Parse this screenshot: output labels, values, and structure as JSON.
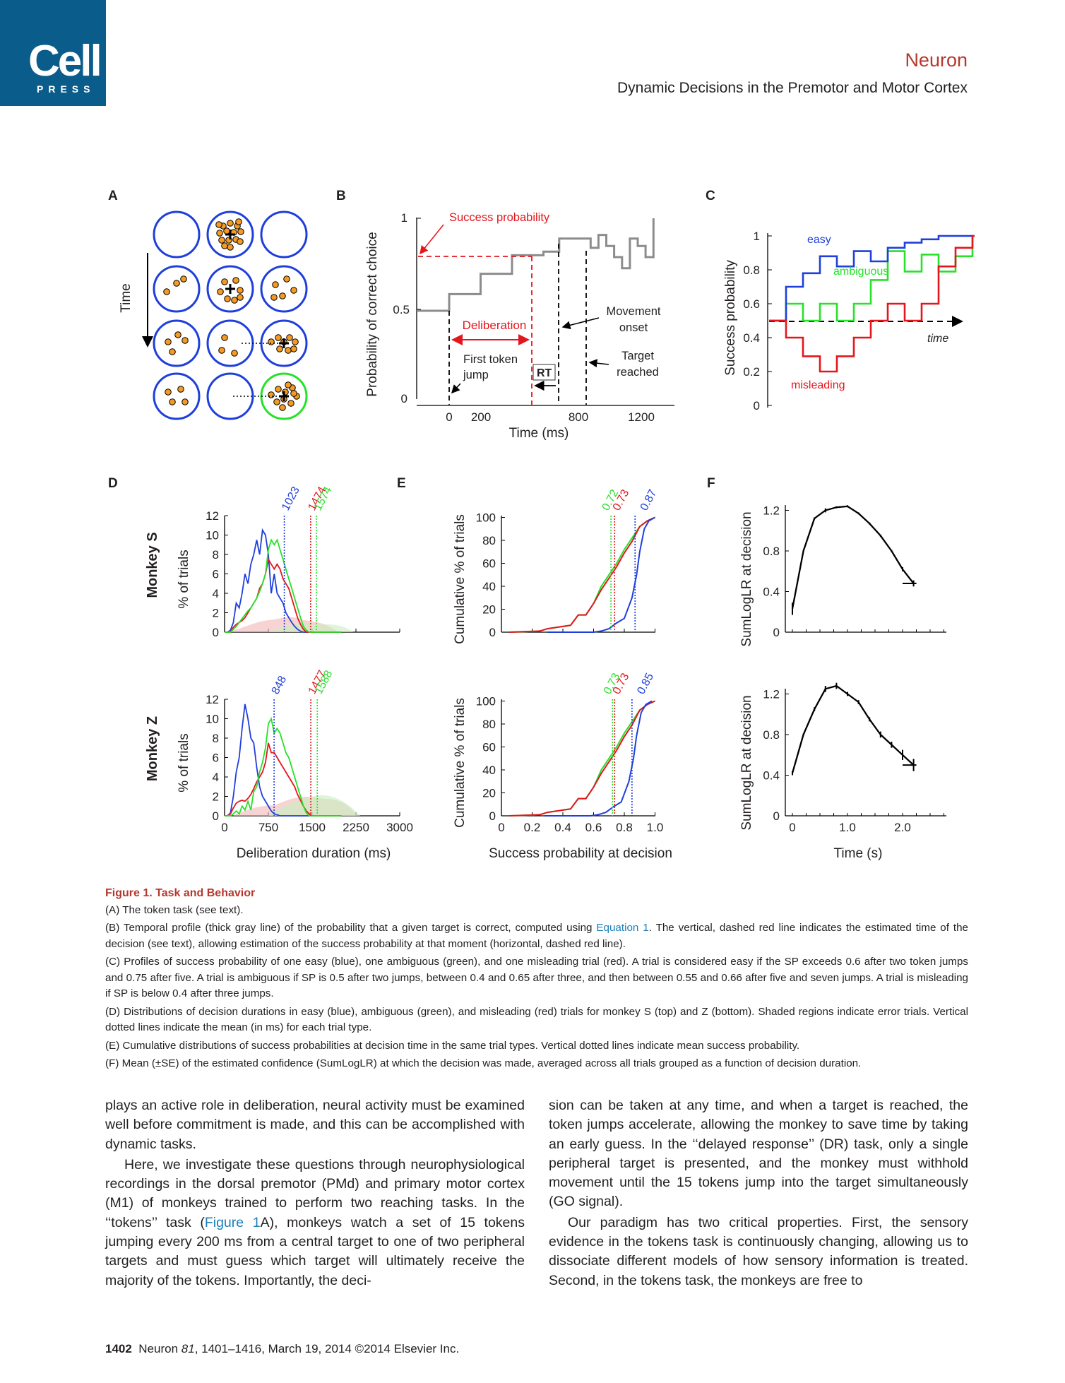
{
  "header": {
    "logo_cell": "Cell",
    "logo_press": "PRESS",
    "journal": "Neuron",
    "running_head": "Dynamic Decisions in the Premotor and Motor Cortex"
  },
  "figure": {
    "panel_labels": [
      "A",
      "B",
      "C",
      "D",
      "E",
      "F"
    ],
    "panel_a": {
      "time_label": "Time"
    },
    "panel_b": {
      "ylabel": "Probability of correct choice",
      "xlabel": "Time (ms)",
      "yticks": [
        "0",
        "0.5",
        "1"
      ],
      "xticks": [
        "0",
        "200",
        "800",
        "1200"
      ],
      "annot_success": "Success probability",
      "annot_deliberation": "Deliberation",
      "annot_first_token": [
        "First token",
        "jump"
      ],
      "annot_rt": "RT",
      "annot_movement": [
        "Movement",
        "onset"
      ],
      "annot_target": [
        "Target",
        "reached"
      ]
    },
    "panel_c": {
      "ylabel": "Success probability",
      "yticks": [
        "0",
        "0.2",
        "0.4",
        "0.6",
        "0.8",
        "1"
      ],
      "label_easy": "easy",
      "label_ambiguous": "ambiguous",
      "label_misleading": "misleading",
      "label_time": "time"
    },
    "panel_d": {
      "ylabel": "% of trials",
      "yticks": [
        "0",
        "2",
        "4",
        "6",
        "8",
        "10",
        "12"
      ],
      "xticks": [
        "0",
        "750",
        "1500",
        "2250",
        "3000"
      ],
      "xlabel": "Deliberation duration (ms)",
      "monkey_s": "Monkey S",
      "monkey_z": "Monkey Z",
      "means_s": [
        "1023",
        "1474",
        "1574"
      ],
      "means_z": [
        "848",
        "1477",
        "1588"
      ]
    },
    "panel_e": {
      "ylabel": "Cumulative % of trials",
      "yticks": [
        "0",
        "20",
        "40",
        "60",
        "80",
        "100"
      ],
      "xticks": [
        "0",
        "0.2",
        "0.4",
        "0.6",
        "0.8",
        "1.0"
      ],
      "xlabel": "Success probability at decision",
      "means_s": [
        "0.72",
        "0.73",
        "0.87"
      ],
      "means_z": [
        "0.73",
        "0.73",
        "0.85"
      ]
    },
    "panel_f": {
      "ylabel": "SumLogLR at decision",
      "yticks": [
        "0",
        "0.4",
        "0.8",
        "1.2"
      ],
      "xticks": [
        "0",
        "1.0",
        "2.0"
      ],
      "xlabel": "Time (s)"
    },
    "colors": {
      "easy": "#1f3fdc",
      "ambiguous": "#28e12a",
      "misleading": "#e4161d",
      "gray": "#8c8c8c",
      "token": "#f59a23"
    }
  },
  "chart_data": [
    {
      "panel": "B",
      "type": "line",
      "xlabel": "Time (ms)",
      "ylabel": "Probability of correct choice",
      "ylim": [
        0,
        1
      ],
      "series": [
        {
          "name": "Success probability",
          "x": [
            -200,
            0,
            200,
            400,
            600,
            700,
            900,
            950,
            1000,
            1050,
            1100,
            1150,
            1200,
            1250,
            1300
          ],
          "y": [
            0.5,
            0.59,
            0.7,
            0.8,
            0.82,
            0.89,
            0.84,
            0.91,
            0.85,
            0.79,
            0.73,
            0.89,
            0.85,
            0.79,
            1.0
          ]
        }
      ]
    },
    {
      "panel": "C",
      "type": "line",
      "ylabel": "Success probability",
      "ylim": [
        0,
        1
      ],
      "series": [
        {
          "name": "easy",
          "y": [
            0.5,
            0.7,
            0.78,
            0.88,
            0.82,
            0.91,
            0.85,
            0.93,
            0.96,
            0.98,
            1.0,
            1.0
          ]
        },
        {
          "name": "ambiguous",
          "y": [
            0.5,
            0.6,
            0.5,
            0.6,
            0.5,
            0.6,
            0.74,
            0.91,
            0.79,
            0.89,
            0.79,
            0.88,
            1.0
          ]
        },
        {
          "name": "misleading",
          "y": [
            0.5,
            0.4,
            0.29,
            0.2,
            0.29,
            0.4,
            0.5,
            0.6,
            0.5,
            0.6,
            0.82,
            0.93,
            1.0
          ]
        }
      ]
    },
    {
      "panel": "D",
      "monkey": "S",
      "type": "line",
      "xlabel": "Deliberation duration (ms)",
      "ylabel": "% of trials",
      "ylim": [
        0,
        12
      ],
      "xlim": [
        0,
        3000
      ],
      "means": {
        "easy": 1023,
        "misleading": 1474,
        "ambiguous": 1574
      }
    },
    {
      "panel": "D",
      "monkey": "Z",
      "type": "line",
      "xlabel": "Deliberation duration (ms)",
      "ylabel": "% of trials",
      "ylim": [
        0,
        12
      ],
      "xlim": [
        0,
        3000
      ],
      "means": {
        "easy": 848,
        "misleading": 1477,
        "ambiguous": 1588
      }
    },
    {
      "panel": "E",
      "monkey": "S",
      "type": "line",
      "xlabel": "Success probability at decision",
      "ylabel": "Cumulative % of trials",
      "ylim": [
        0,
        100
      ],
      "means": {
        "ambiguous": 0.72,
        "misleading": 0.73,
        "easy": 0.87
      }
    },
    {
      "panel": "E",
      "monkey": "Z",
      "type": "line",
      "xlabel": "Success probability at decision",
      "ylabel": "Cumulative % of trials",
      "ylim": [
        0,
        100
      ],
      "means": {
        "ambiguous": 0.73,
        "misleading": 0.73,
        "easy": 0.85
      }
    },
    {
      "panel": "F",
      "monkey": "S",
      "type": "line",
      "xlabel": "Time (s)",
      "ylabel": "SumLogLR at decision",
      "x": [
        0,
        0.2,
        0.4,
        0.6,
        0.8,
        1.0,
        1.2,
        1.4,
        1.6,
        1.8,
        2.0,
        2.2
      ],
      "y": [
        0.23,
        0.8,
        1.12,
        1.2,
        1.23,
        1.24,
        1.17,
        1.07,
        0.95,
        0.8,
        0.62,
        0.48
      ]
    },
    {
      "panel": "F",
      "monkey": "Z",
      "type": "line",
      "xlabel": "Time (s)",
      "ylabel": "SumLogLR at decision",
      "x": [
        0,
        0.2,
        0.4,
        0.6,
        0.8,
        1.0,
        1.2,
        1.4,
        1.6,
        1.8,
        2.0,
        2.2
      ],
      "y": [
        0.42,
        0.8,
        1.05,
        1.25,
        1.28,
        1.2,
        1.12,
        0.95,
        0.8,
        0.7,
        0.6,
        0.5
      ]
    }
  ],
  "caption": {
    "title": "Figure 1.  Task and Behavior",
    "a": "(A) The token task (see text).",
    "b_pre": "(B) Temporal profile (thick gray line) of the probability that a given target is correct, computed using ",
    "b_link": "Equation 1",
    "b_post": ". The vertical, dashed red line indicates the estimated time of the decision (see text), allowing estimation of the success probability at that moment (horizontal, dashed red line).",
    "c": "(C) Profiles of success probability of one easy (blue), one ambiguous (green), and one misleading trial (red). A trial is considered easy if the SP exceeds 0.6 after two token jumps and 0.75 after five. A trial is ambiguous if SP is 0.5 after two jumps, between 0.4 and 0.65 after three, and then between 0.55 and 0.66 after five and seven jumps. A trial is misleading if SP is below 0.4 after three jumps.",
    "d": "(D) Distributions of decision durations in easy (blue), ambiguous (green), and misleading (red) trials for monkey S (top) and Z (bottom). Shaded regions indicate error trials. Vertical dotted lines indicate the mean (in ms) for each trial type.",
    "e": "(E) Cumulative distributions of success probabilities at decision time in the same trial types. Vertical dotted lines indicate mean success probability.",
    "f": "(F) Mean (±SE) of the estimated confidence (SumLogLR) at which the decision was made, averaged across all trials grouped as a function of decision duration."
  },
  "body": {
    "left_p1": "plays an active role in deliberation, neural activity must be examined well before commitment is made, and this can be accomplished with dynamic tasks.",
    "left_p2_pre": "Here, we investigate these questions through neurophysiological recordings in the dorsal premotor (PMd) and primary motor cortex (M1) of monkeys trained to perform two reaching tasks. In the ‘‘tokens’’ task (",
    "left_p2_link": "Figure 1",
    "left_p2_post": "A), monkeys watch a set of 15 tokens jumping every 200 ms from a central target to one of two peripheral targets and must guess which target will ultimately receive the majority of the tokens. Importantly, the deci-",
    "right_p1": "sion can be taken at any time, and when a target is reached, the token jumps accelerate, allowing the monkey to save time by taking an early guess. In the ‘‘delayed response’’ (DR) task, only a single peripheral target is presented, and the monkey must withhold movement until the 15 tokens jump into the target simultaneously (GO signal).",
    "right_p2": "Our paradigm has two critical properties. First, the sensory evidence in the tokens task is continuously changing, allowing us to dissociate different models of how sensory information is treated. Second, in the tokens task, the monkeys are free to"
  },
  "footer": {
    "page": "1402",
    "journal": "Neuron",
    "volume": "81",
    "rest": ", 1401–1416, March 19, 2014 ©2014 Elsevier Inc."
  }
}
